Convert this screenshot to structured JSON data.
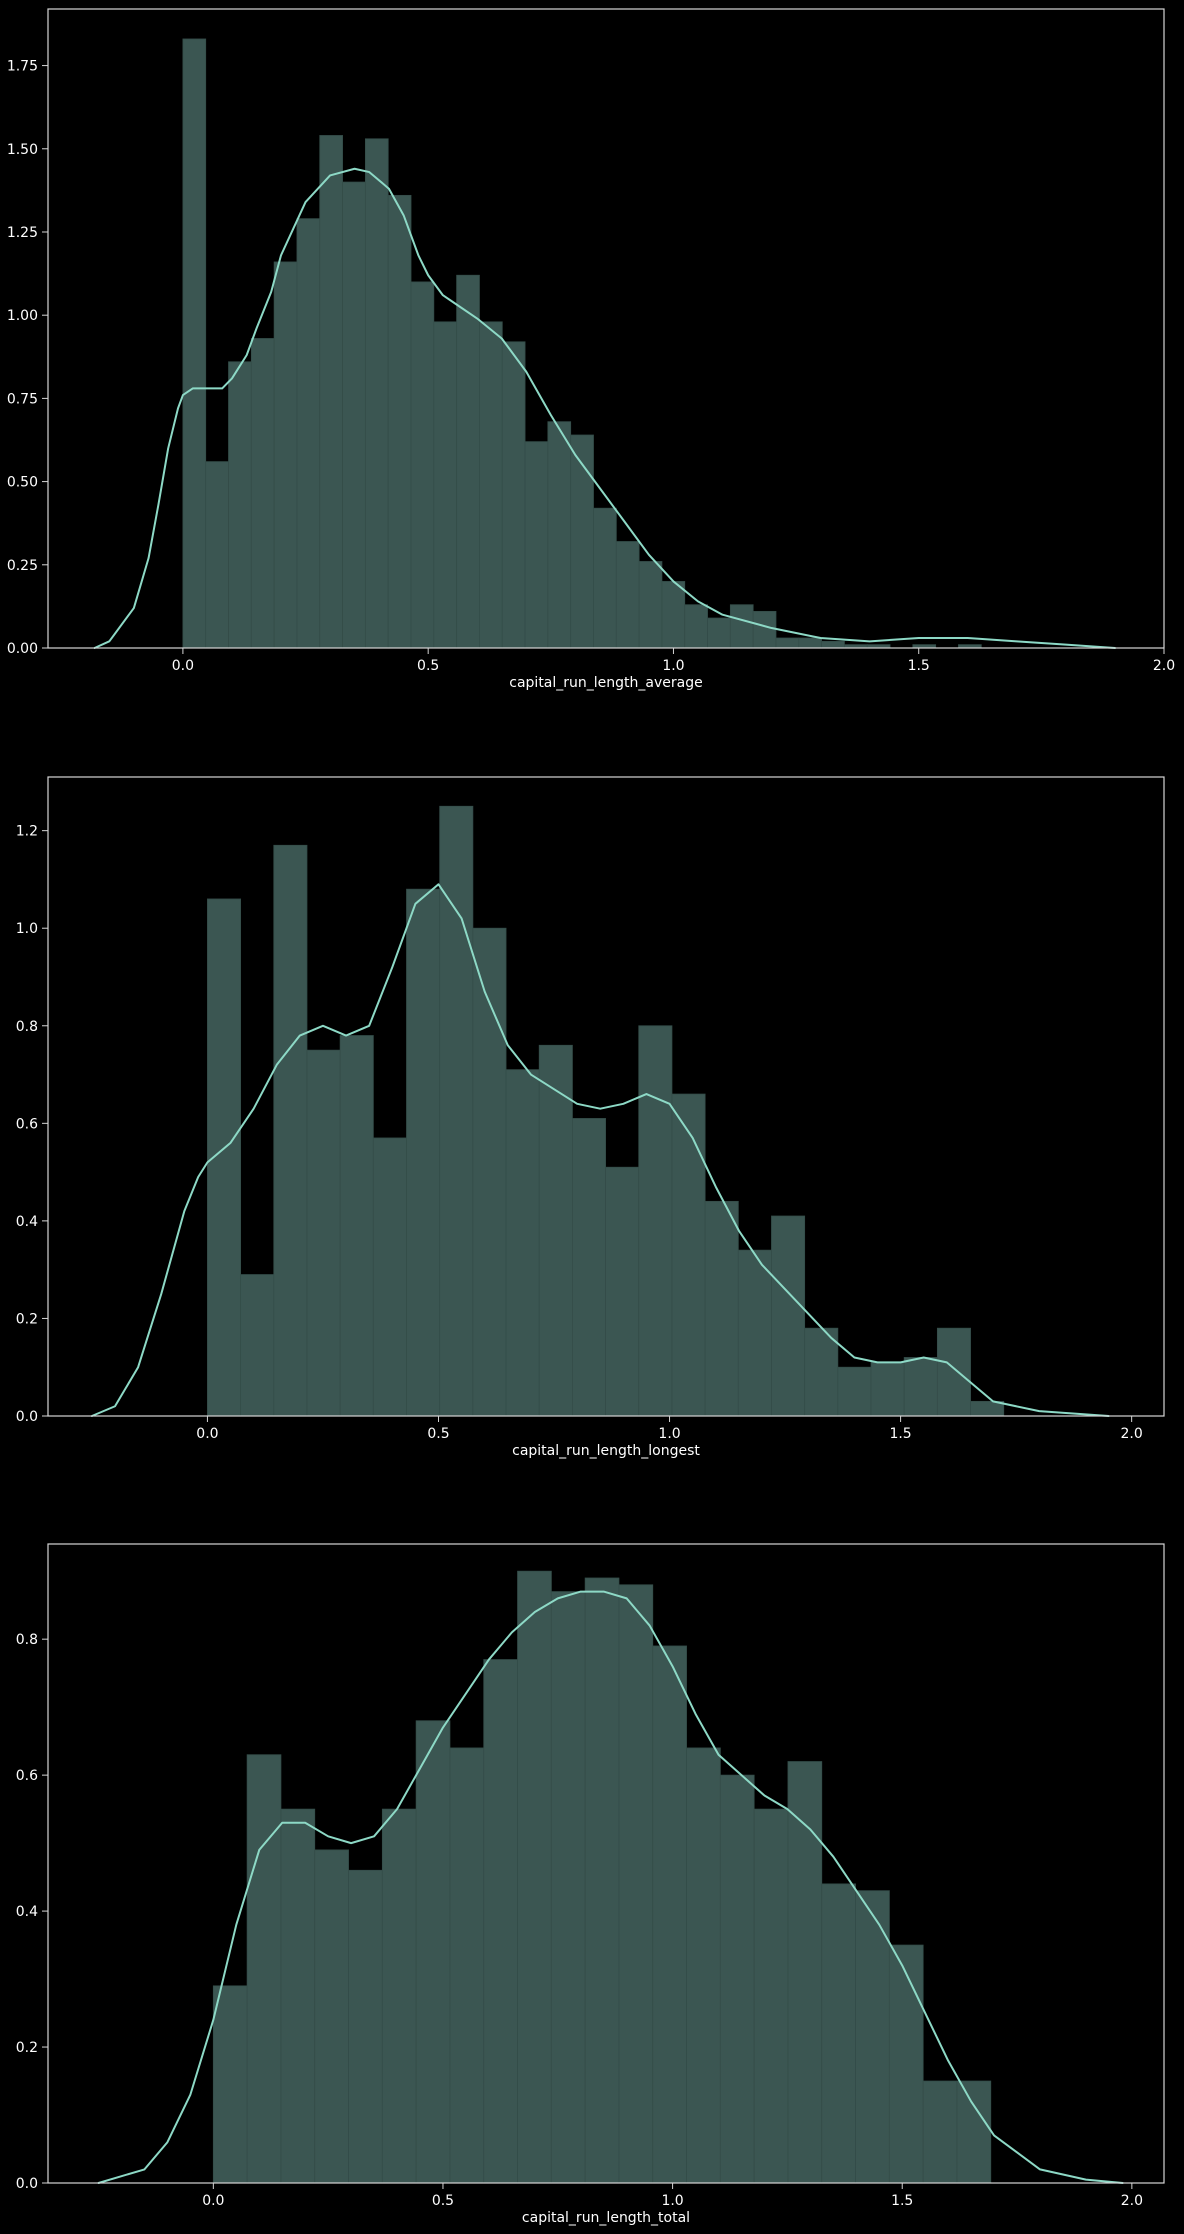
{
  "chart_data": [
    {
      "type": "bar",
      "xlabel": "capital_run_length_average",
      "xlim": [
        -0.275,
        2.0
      ],
      "ylim": [
        0,
        1.92
      ],
      "xticks": [
        0.0,
        0.5,
        1.0,
        1.5,
        2.0
      ],
      "yticks": [
        0.0,
        0.25,
        0.5,
        0.75,
        1.0,
        1.25,
        1.5,
        1.75
      ],
      "xtick_labels": [
        "0.0",
        "0.5",
        "1.0",
        "1.5",
        "2.0"
      ],
      "ytick_labels": [
        "0.00",
        "0.25",
        "0.50",
        "0.75",
        "1.00",
        "1.25",
        "1.50",
        "1.75"
      ],
      "histogram": {
        "bin_start": 0.0,
        "bin_width": 0.0465,
        "values": [
          1.83,
          0.56,
          0.86,
          0.93,
          1.16,
          1.29,
          1.54,
          1.4,
          1.53,
          1.36,
          1.1,
          0.98,
          1.12,
          0.98,
          0.92,
          0.62,
          0.68,
          0.64,
          0.42,
          0.32,
          0.26,
          0.2,
          0.13,
          0.09,
          0.13,
          0.11,
          0.03,
          0.03,
          0.02,
          0.01,
          0.01,
          0.0,
          0.01,
          0.0,
          0.01,
          0.0,
          0.0,
          0.0
        ]
      },
      "kde": {
        "x": [
          -0.18,
          -0.15,
          -0.1,
          -0.07,
          -0.05,
          -0.03,
          -0.01,
          0.0,
          0.02,
          0.03,
          0.05,
          0.08,
          0.1,
          0.13,
          0.15,
          0.18,
          0.2,
          0.25,
          0.3,
          0.35,
          0.38,
          0.42,
          0.45,
          0.48,
          0.5,
          0.53,
          0.55,
          0.6,
          0.65,
          0.7,
          0.75,
          0.8,
          0.85,
          0.9,
          0.95,
          1.0,
          1.05,
          1.1,
          1.2,
          1.3,
          1.4,
          1.5,
          1.55,
          1.6,
          1.7,
          1.8,
          1.9
        ],
        "y": [
          0.0,
          0.02,
          0.12,
          0.27,
          0.43,
          0.6,
          0.72,
          0.76,
          0.78,
          0.78,
          0.78,
          0.78,
          0.81,
          0.88,
          0.96,
          1.07,
          1.18,
          1.34,
          1.42,
          1.44,
          1.43,
          1.38,
          1.3,
          1.18,
          1.12,
          1.06,
          1.04,
          0.99,
          0.93,
          0.83,
          0.7,
          0.58,
          0.48,
          0.38,
          0.28,
          0.2,
          0.14,
          0.1,
          0.06,
          0.03,
          0.02,
          0.03,
          0.03,
          0.03,
          0.02,
          0.01,
          0.0
        ]
      },
      "grid": false
    },
    {
      "type": "bar",
      "xlabel": "capital_run_length_longest",
      "xlim": [
        -0.345,
        2.07
      ],
      "ylim": [
        0,
        1.31
      ],
      "xticks": [
        0.0,
        0.5,
        1.0,
        1.5,
        2.0
      ],
      "yticks": [
        0.0,
        0.2,
        0.4,
        0.6,
        0.8,
        1.0,
        1.2
      ],
      "xtick_labels": [
        "0.0",
        "0.5",
        "1.0",
        "1.5",
        "2.0"
      ],
      "ytick_labels": [
        "0.0",
        "0.2",
        "0.4",
        "0.6",
        "0.8",
        "1.0",
        "1.2"
      ],
      "histogram": {
        "bin_start": 0.0,
        "bin_width": 0.0718,
        "values": [
          1.06,
          0.29,
          1.17,
          0.75,
          0.78,
          0.57,
          1.08,
          1.25,
          1.0,
          0.71,
          0.76,
          0.61,
          0.51,
          0.8,
          0.66,
          0.44,
          0.34,
          0.41,
          0.18,
          0.1,
          0.11,
          0.12,
          0.18,
          0.03
        ]
      },
      "kde": {
        "x": [
          -0.25,
          -0.2,
          -0.15,
          -0.1,
          -0.05,
          -0.02,
          0.0,
          0.05,
          0.1,
          0.15,
          0.2,
          0.25,
          0.3,
          0.35,
          0.4,
          0.45,
          0.5,
          0.55,
          0.6,
          0.65,
          0.7,
          0.75,
          0.8,
          0.85,
          0.9,
          0.95,
          1.0,
          1.05,
          1.1,
          1.15,
          1.2,
          1.25,
          1.3,
          1.35,
          1.4,
          1.45,
          1.5,
          1.55,
          1.6,
          1.65,
          1.7,
          1.8,
          1.95
        ],
        "y": [
          0.0,
          0.02,
          0.1,
          0.25,
          0.42,
          0.49,
          0.52,
          0.56,
          0.63,
          0.72,
          0.78,
          0.8,
          0.78,
          0.8,
          0.92,
          1.05,
          1.09,
          1.02,
          0.87,
          0.76,
          0.7,
          0.67,
          0.64,
          0.63,
          0.64,
          0.66,
          0.64,
          0.57,
          0.47,
          0.38,
          0.31,
          0.26,
          0.21,
          0.16,
          0.12,
          0.11,
          0.11,
          0.12,
          0.11,
          0.07,
          0.03,
          0.01,
          0.0
        ]
      },
      "grid": false
    },
    {
      "type": "bar",
      "xlabel": "capital_run_length_total",
      "xlim": [
        -0.36,
        2.07
      ],
      "ylim": [
        0,
        0.94
      ],
      "xticks": [
        0.0,
        0.5,
        1.0,
        1.5,
        2.0
      ],
      "yticks": [
        0.0,
        0.2,
        0.4,
        0.6,
        0.8
      ],
      "xtick_labels": [
        "0.0",
        "0.5",
        "1.0",
        "1.5",
        "2.0"
      ],
      "ytick_labels": [
        "0.0",
        "0.2",
        "0.4",
        "0.6",
        "0.8"
      ],
      "histogram": {
        "bin_start": 0.0,
        "bin_width": 0.0736,
        "values": [
          0.29,
          0.63,
          0.55,
          0.49,
          0.46,
          0.55,
          0.68,
          0.64,
          0.77,
          0.9,
          0.87,
          0.89,
          0.88,
          0.79,
          0.64,
          0.6,
          0.55,
          0.62,
          0.44,
          0.43,
          0.35,
          0.15,
          0.15
        ]
      },
      "kde": {
        "x": [
          -0.25,
          -0.15,
          -0.1,
          -0.05,
          0.0,
          0.05,
          0.1,
          0.15,
          0.2,
          0.25,
          0.3,
          0.35,
          0.4,
          0.45,
          0.5,
          0.55,
          0.6,
          0.65,
          0.7,
          0.75,
          0.8,
          0.85,
          0.9,
          0.95,
          1.0,
          1.05,
          1.1,
          1.15,
          1.2,
          1.25,
          1.3,
          1.35,
          1.4,
          1.45,
          1.5,
          1.55,
          1.6,
          1.65,
          1.7,
          1.8,
          1.9,
          1.98
        ],
        "y": [
          0.0,
          0.02,
          0.06,
          0.13,
          0.24,
          0.38,
          0.49,
          0.53,
          0.53,
          0.51,
          0.5,
          0.51,
          0.55,
          0.61,
          0.67,
          0.72,
          0.77,
          0.81,
          0.84,
          0.86,
          0.87,
          0.87,
          0.86,
          0.82,
          0.76,
          0.69,
          0.63,
          0.6,
          0.57,
          0.55,
          0.52,
          0.48,
          0.43,
          0.38,
          0.32,
          0.25,
          0.18,
          0.12,
          0.07,
          0.02,
          0.005,
          0.0
        ]
      },
      "grid": false
    }
  ],
  "colors": {
    "background": "#000000",
    "bar_fill": "#3b5652",
    "bar_edge": "#344d49",
    "kde_line": "#8dd9c6",
    "axes": "#d6d6d6",
    "text": "#ffffff"
  }
}
